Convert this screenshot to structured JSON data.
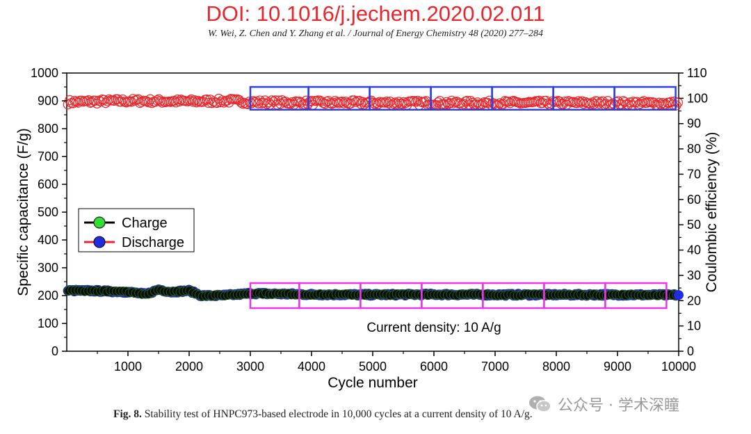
{
  "header": {
    "doi": "DOI: 10.1016/j.jechem.2020.02.011",
    "citation": "W. Wei, Z. Chen and Y. Zhang et al. / Journal of Energy Chemistry 48 (2020) 277–284"
  },
  "caption": {
    "label": "Fig. 8.",
    "text": " Stability test of HNPC973-based electrode in 10,000 cycles at a current density of 10 A/g."
  },
  "watermark": {
    "text": "公众号 · 学术深瞳",
    "icon": "wechat-icon"
  },
  "chart_data": {
    "type": "scatter",
    "title": "",
    "xlabel": "Cycle number",
    "ylabel": "Specific capacitance (F/g)",
    "y2label": "Coulombic efficiency (%)",
    "xlim": [
      0,
      10000
    ],
    "ylim": [
      0,
      1000
    ],
    "y2lim": [
      0,
      110
    ],
    "x_ticks": [
      1000,
      2000,
      3000,
      4000,
      5000,
      6000,
      7000,
      8000,
      9000,
      10000
    ],
    "y_ticks": [
      0,
      100,
      200,
      300,
      400,
      500,
      600,
      700,
      800,
      900,
      1000
    ],
    "y2_ticks": [
      0,
      10,
      20,
      30,
      40,
      50,
      60,
      70,
      80,
      90,
      100,
      110
    ],
    "legend": {
      "position": "left-middle",
      "entries": [
        {
          "name": "Charge",
          "line_color": "#000000",
          "marker_color": "#33dd33"
        },
        {
          "name": "Discharge",
          "line_color": "#e8262b",
          "marker_color": "#1f2ce0"
        }
      ]
    },
    "annotation": "Current density: 10 A/g",
    "series": [
      {
        "name": "Charge",
        "axis": "left",
        "x": [
          0,
          500,
          1000,
          1300,
          1500,
          1700,
          2000,
          2200,
          2500,
          2800,
          3000,
          4000,
          5000,
          6000,
          7000,
          8000,
          9000,
          10000
        ],
        "values": [
          218,
          217,
          213,
          205,
          222,
          213,
          218,
          200,
          200,
          204,
          208,
          204,
          203,
          204,
          203,
          203,
          203,
          202
        ]
      },
      {
        "name": "Discharge",
        "axis": "left",
        "x": [
          0,
          500,
          1000,
          1300,
          1500,
          1700,
          2000,
          2200,
          2500,
          2800,
          3000,
          4000,
          5000,
          6000,
          7000,
          8000,
          9000,
          10000
        ],
        "values": [
          218,
          217,
          213,
          205,
          222,
          213,
          218,
          200,
          200,
          204,
          208,
          204,
          203,
          204,
          203,
          203,
          203,
          202
        ]
      },
      {
        "name": "Coulombic efficiency",
        "axis": "right",
        "x": [
          0,
          1000,
          2000,
          2700,
          3000,
          4000,
          5000,
          6000,
          7000,
          8000,
          9000,
          10000
        ],
        "values": [
          98.5,
          99.0,
          98.8,
          99.0,
          98.5,
          98.3,
          98.3,
          98.2,
          98.2,
          98.2,
          98.2,
          98.0
        ]
      }
    ],
    "highlight_boxes": {
      "efficiency": [
        {
          "x_from": 3000,
          "x_to": 3950,
          "y2_from": 95.5,
          "y2_to": 104.5
        },
        {
          "x_from": 3950,
          "x_to": 4950,
          "y2_from": 95.5,
          "y2_to": 104.5
        },
        {
          "x_from": 4950,
          "x_to": 5950,
          "y2_from": 95.5,
          "y2_to": 104.5
        },
        {
          "x_from": 5950,
          "x_to": 6950,
          "y2_from": 95.5,
          "y2_to": 104.5
        },
        {
          "x_from": 6950,
          "x_to": 7950,
          "y2_from": 95.5,
          "y2_to": 104.5
        },
        {
          "x_from": 7950,
          "x_to": 8950,
          "y2_from": 95.5,
          "y2_to": 104.5
        },
        {
          "x_from": 8950,
          "x_to": 9950,
          "y2_from": 95.5,
          "y2_to": 104.5
        }
      ],
      "capacitance": [
        {
          "x_from": 3000,
          "x_to": 3800,
          "y_from": 155,
          "y_to": 245
        },
        {
          "x_from": 3800,
          "x_to": 4800,
          "y_from": 155,
          "y_to": 245
        },
        {
          "x_from": 4800,
          "x_to": 5800,
          "y_from": 155,
          "y_to": 245
        },
        {
          "x_from": 5800,
          "x_to": 6800,
          "y_from": 155,
          "y_to": 245
        },
        {
          "x_from": 6800,
          "x_to": 7800,
          "y_from": 155,
          "y_to": 245
        },
        {
          "x_from": 7800,
          "x_to": 8800,
          "y_from": 155,
          "y_to": 245
        },
        {
          "x_from": 8800,
          "x_to": 9800,
          "y_from": 155,
          "y_to": 245
        }
      ],
      "efficiency_color": "#2c3fe6",
      "capacitance_color": "#ee33ee"
    },
    "grid": false
  }
}
